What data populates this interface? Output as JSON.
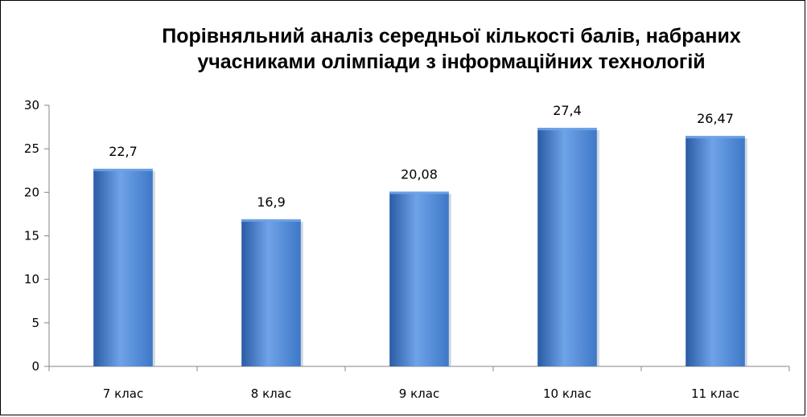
{
  "chart_data": {
    "type": "bar",
    "title_lines": [
      "Порівняльний аналіз середньої кількості балів, набраних",
      "учасниками олімпіади з інформаційних технологій"
    ],
    "categories": [
      "7 клас",
      "8 клас",
      "9 клас",
      "10 клас",
      "11 клас"
    ],
    "values": [
      22.7,
      16.9,
      20.08,
      27.4,
      26.47
    ],
    "data_labels": [
      "22,7",
      "16,9",
      "20,08",
      "27,4",
      "26,47"
    ],
    "ylim": [
      0,
      30
    ],
    "yticks": [
      0,
      5,
      10,
      15,
      20,
      25,
      30
    ],
    "grid": false,
    "legend": "none",
    "bar_color": "#3e78c7",
    "bar_color_light": "#6fa3e8",
    "bar_color_dark": "#2a5ba5"
  }
}
